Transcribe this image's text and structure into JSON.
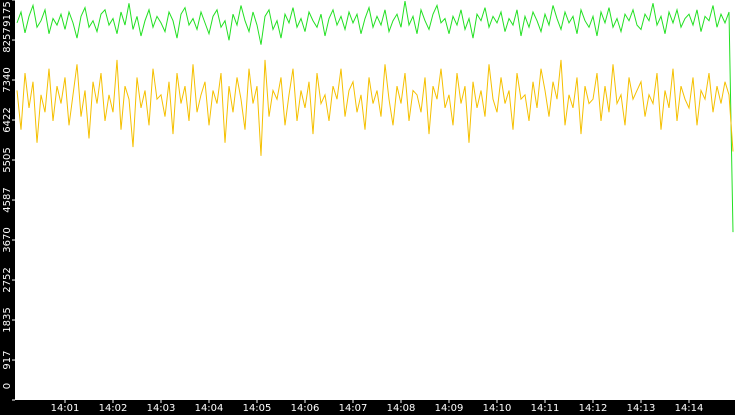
{
  "chart_data": {
    "type": "line",
    "categories": [
      null,
      null,
      null,
      null,
      null,
      null,
      null,
      null,
      null,
      null,
      null,
      null,
      "14:01",
      null,
      null,
      null,
      null,
      null,
      null,
      null,
      null,
      null,
      null,
      null,
      "14:02",
      null,
      null,
      null,
      null,
      null,
      null,
      null,
      null,
      null,
      null,
      null,
      "14:03",
      null,
      null,
      null,
      null,
      null,
      null,
      null,
      null,
      null,
      null,
      null,
      "14:04",
      null,
      null,
      null,
      null,
      null,
      null,
      null,
      null,
      null,
      null,
      null,
      "14:05",
      null,
      null,
      null,
      null,
      null,
      null,
      null,
      null,
      null,
      null,
      null,
      "14:06",
      null,
      null,
      null,
      null,
      null,
      null,
      null,
      null,
      null,
      null,
      null,
      "14:07",
      null,
      null,
      null,
      null,
      null,
      null,
      null,
      null,
      null,
      null,
      null,
      "14:08",
      null,
      null,
      null,
      null,
      null,
      null,
      null,
      null,
      null,
      null,
      null,
      "14:09",
      null,
      null,
      null,
      null,
      null,
      null,
      null,
      null,
      null,
      null,
      null,
      "14:10",
      null,
      null,
      null,
      null,
      null,
      null,
      null,
      null,
      null,
      null,
      null,
      "14:11",
      null,
      null,
      null,
      null,
      null,
      null,
      null,
      null,
      null,
      null,
      null,
      "14:12",
      null,
      null,
      null,
      null,
      null,
      null,
      null,
      null,
      null,
      null,
      null,
      "14:13",
      null,
      null,
      null,
      null,
      null,
      null,
      null,
      null,
      null,
      null,
      null,
      "14:14",
      null,
      null,
      null,
      null,
      null,
      null,
      null,
      null,
      null,
      null,
      null
    ],
    "series": [
      {
        "color": "#22e022",
        "values": [
          8650,
          8900,
          8420,
          8800,
          9050,
          8550,
          8700,
          8950,
          8400,
          8750,
          8600,
          8850,
          8500,
          8900,
          8650,
          8300,
          8800,
          9000,
          8550,
          8700,
          8450,
          8850,
          8950,
          8600,
          8750,
          8400,
          8900,
          8600,
          9100,
          8500,
          8800,
          8350,
          8700,
          8950,
          8550,
          8800,
          8650,
          8450,
          8900,
          8700,
          8300,
          8850,
          9000,
          8600,
          8750,
          8500,
          8900,
          8650,
          8400,
          8800,
          8950,
          8550,
          8700,
          8250,
          8850,
          8600,
          9050,
          8700,
          8450,
          8900,
          8600,
          8150,
          8800,
          8950,
          8500,
          8700,
          8300,
          8850,
          8650,
          9000,
          8550,
          8750,
          8450,
          8900,
          8700,
          8550,
          8850,
          8350,
          8750,
          8950,
          8600,
          8800,
          8500,
          8900,
          8650,
          8850,
          8400,
          8750,
          9000,
          8550,
          8800,
          8600,
          8950,
          8450,
          8700,
          8850,
          8550,
          9150,
          8600,
          8800,
          8400,
          8950,
          8700,
          8500,
          8850,
          9050,
          8650,
          8750,
          8400,
          8800,
          8600,
          8950,
          8500,
          8750,
          8300,
          8850,
          8700,
          9000,
          8550,
          8800,
          8650,
          8900,
          8450,
          8750,
          8600,
          8950,
          8350,
          8800,
          8550,
          8900,
          8700,
          8450,
          8850,
          8600,
          9050,
          8750,
          8500,
          8900,
          8650,
          8800,
          8400,
          8950,
          8700,
          8550,
          8800,
          8350,
          8900,
          8650,
          9000,
          8550,
          8750,
          8450,
          8850,
          8700,
          8950,
          8600,
          8500,
          8850,
          8700,
          9100,
          8600,
          8800,
          8400,
          8900,
          8650,
          8950,
          8550,
          8750,
          8850,
          8600,
          8950,
          8450,
          8800,
          8700,
          9050,
          8550,
          8850,
          8650,
          8900,
          3850
        ]
      },
      {
        "color": "#f5c000",
        "values": [
          7100,
          6200,
          7500,
          6700,
          7300,
          5900,
          7000,
          6600,
          7600,
          6400,
          7200,
          6800,
          7400,
          6300,
          7000,
          7700,
          6500,
          7100,
          6000,
          7300,
          6800,
          7500,
          6400,
          7000,
          6600,
          7800,
          6200,
          7200,
          6900,
          5800,
          7400,
          6700,
          7100,
          6300,
          7600,
          6900,
          7000,
          6500,
          7300,
          6100,
          7500,
          6800,
          7200,
          6400,
          7700,
          6600,
          7000,
          7300,
          6300,
          7100,
          6800,
          7500,
          5900,
          7200,
          6600,
          7400,
          6900,
          6200,
          7600,
          6800,
          7200,
          5600,
          7800,
          6500,
          7100,
          6900,
          7400,
          6300,
          7000,
          7600,
          6400,
          7100,
          6700,
          7300,
          6100,
          7500,
          6800,
          7000,
          6400,
          7200,
          6900,
          7600,
          6500,
          7100,
          7300,
          6600,
          7000,
          6200,
          7400,
          6800,
          7100,
          6500,
          7700,
          6900,
          6300,
          7200,
          6800,
          7500,
          6400,
          7100,
          7000,
          6600,
          7400,
          6100,
          7200,
          6900,
          7600,
          6700,
          7000,
          6300,
          7500,
          6800,
          7200,
          5900,
          7300,
          6700,
          7100,
          6500,
          7700,
          6900,
          6600,
          7400,
          6800,
          7100,
          6200,
          7500,
          6900,
          7000,
          6400,
          7300,
          6700,
          7600,
          7100,
          6500,
          7300,
          6900,
          7800,
          6300,
          7000,
          6700,
          7400,
          6100,
          7200,
          6800,
          6900,
          7500,
          6400,
          7200,
          6600,
          7700,
          6800,
          7000,
          6300,
          7400,
          6900,
          7100,
          7300,
          6500,
          7000,
          6800,
          7500,
          6200,
          7100,
          6700,
          7600,
          6400,
          7200,
          6900,
          6700,
          7400,
          6300,
          7100,
          6900,
          7500,
          6600,
          7200,
          6800,
          7300,
          7000,
          5700
        ]
      }
    ],
    "ylim": [
      0,
      9175
    ],
    "yticks": [
      0,
      917,
      1835,
      2752,
      3670,
      4587,
      5505,
      6422,
      7340,
      8257,
      9175
    ]
  }
}
